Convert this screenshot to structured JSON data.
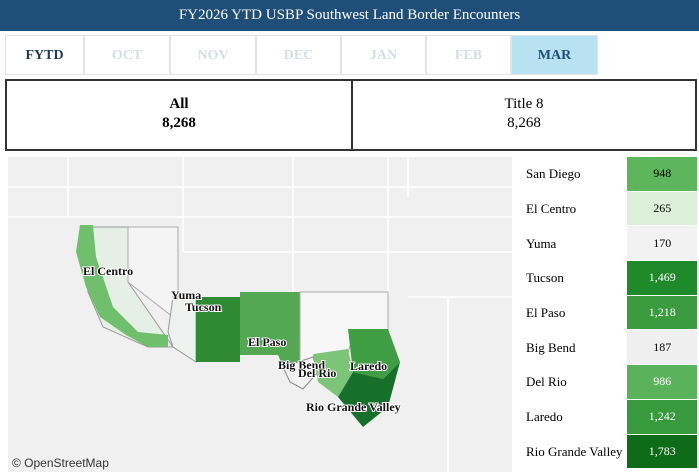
{
  "header": {
    "title": "FY2026 YTD USBP Southwest Land Border Encounters"
  },
  "tabs": [
    "FYTD",
    "OCT",
    "NOV",
    "DEC",
    "JAN",
    "FEB",
    "MAR"
  ],
  "cards": [
    {
      "label": "All",
      "value": "8,268"
    },
    {
      "label": "Title 8",
      "value": "8,268"
    }
  ],
  "table": {
    "rows": [
      {
        "name": "San Diego",
        "value": "948"
      },
      {
        "name": "El Centro",
        "value": "265"
      },
      {
        "name": "Yuma",
        "value": "170"
      },
      {
        "name": "Tucson",
        "value": "1,469"
      },
      {
        "name": "El Paso",
        "value": "1,218"
      },
      {
        "name": "Big Bend",
        "value": "187"
      },
      {
        "name": "Del Rio",
        "value": "986"
      },
      {
        "name": "Laredo",
        "value": "1,242"
      },
      {
        "name": "Rio Grande Valley",
        "value": "1,783"
      }
    ]
  },
  "map": {
    "attribution": "© OpenStreetMap"
  }
}
